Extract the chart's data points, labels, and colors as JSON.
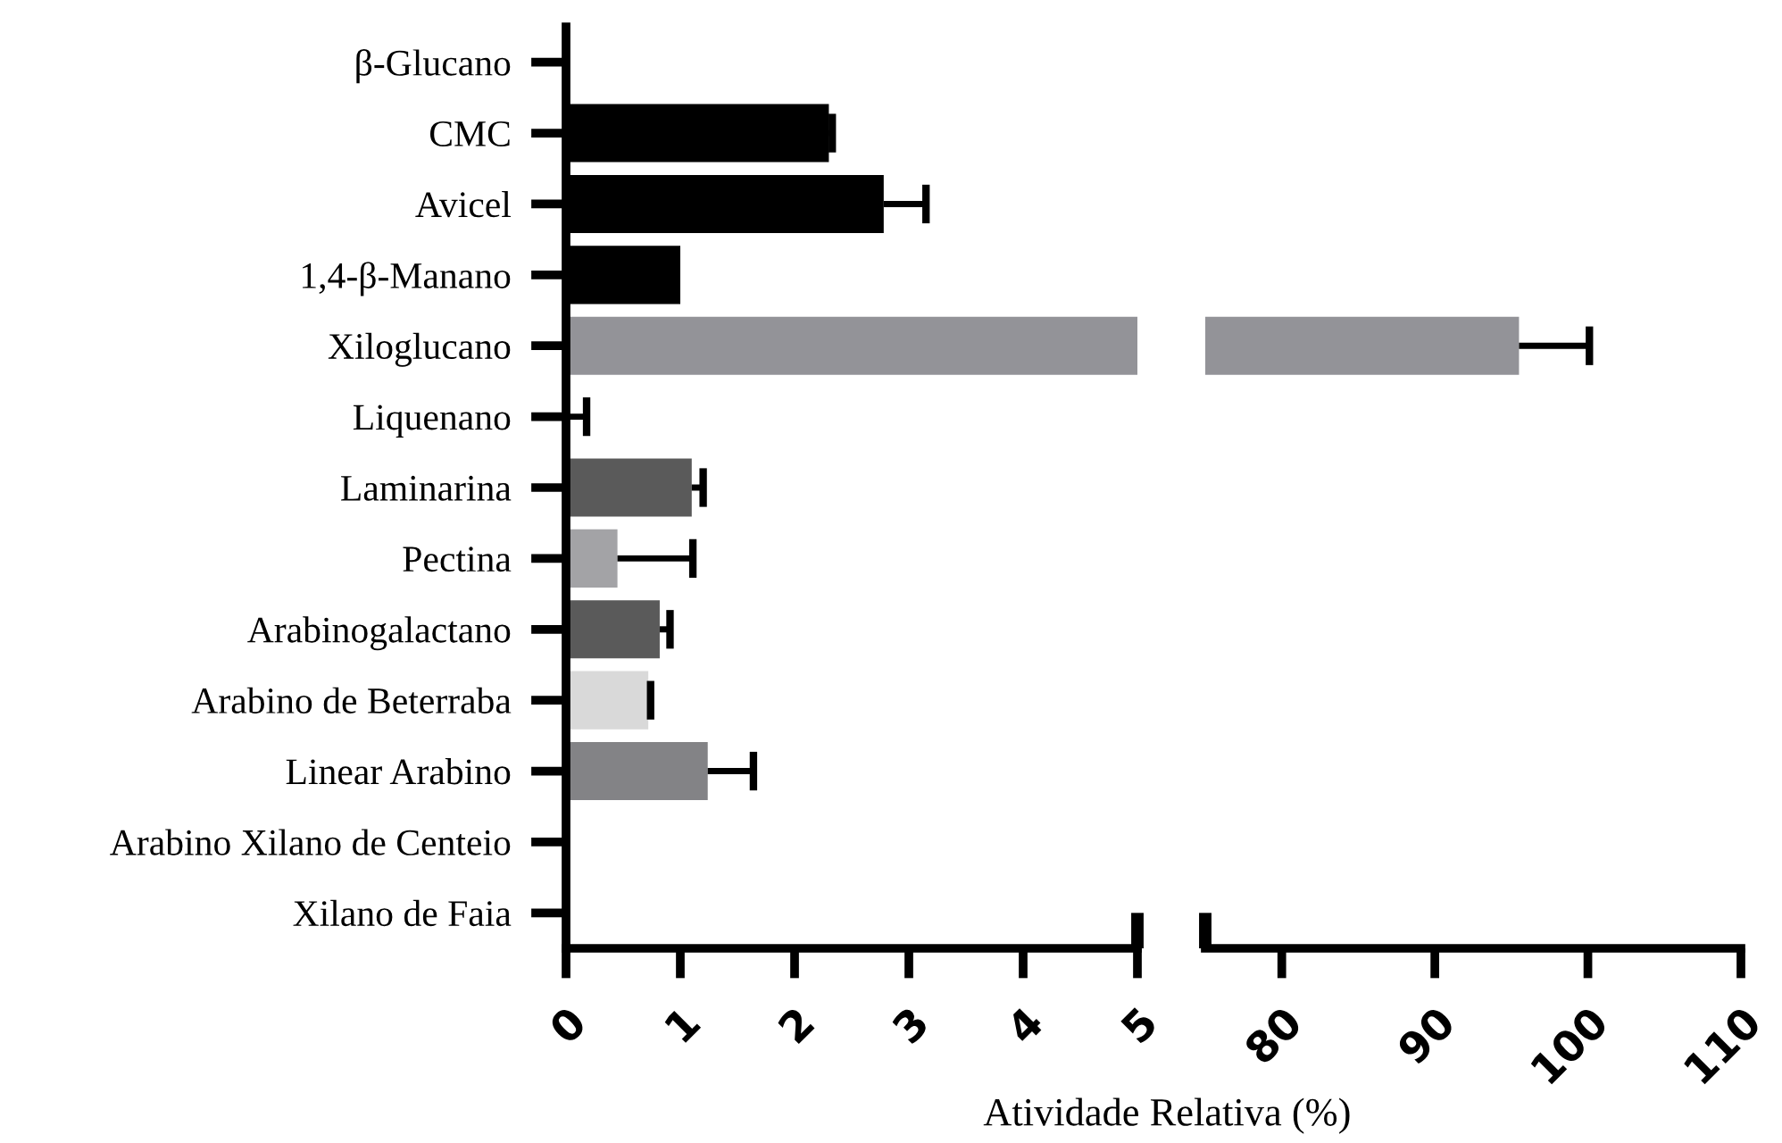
{
  "chart_data": [
    {
      "type": "bar",
      "orientation": "horizontal",
      "xlabel": "Atividade Relativa (%)",
      "categories": [
        "β-Glucano",
        "CMC",
        "Avicel",
        "1,4-β-Manano",
        "Xiloglucano",
        "Liquenano",
        "Laminarina",
        "Pectina",
        "Arabinogalactano",
        "Arabino de Beterraba",
        "Linear Arabino",
        "Arabino Xilano de Centeio",
        "Xilano de Faia"
      ],
      "values": [
        0,
        2.3,
        2.78,
        1.0,
        5,
        0,
        1.1,
        0.45,
        0.82,
        0.72,
        1.24,
        0,
        0
      ],
      "colors": [
        "#000000",
        "#000000",
        "#000000",
        "#000000",
        "#939398",
        "#000000",
        "#5a5a5a",
        "#a3a3a6",
        "#5a5a5a",
        "#d9d9d9",
        "#838386",
        "#000000",
        "#000000"
      ],
      "errors": [
        null,
        [
          2.3,
          2.33
        ],
        [
          2.78,
          3.15
        ],
        null,
        null,
        0.18,
        [
          1.1,
          1.2
        ],
        [
          0.45,
          1.11
        ],
        [
          0.82,
          0.91
        ],
        [
          0.72,
          0.74
        ],
        [
          1.24,
          1.64
        ],
        null,
        null
      ],
      "xlim": [
        0,
        5
      ],
      "xticks": [
        0,
        1,
        2,
        3,
        4,
        5
      ],
      "grid": false
    },
    {
      "type": "bar",
      "orientation": "horizontal",
      "categories": [
        null,
        null,
        null,
        null,
        null,
        null,
        null,
        null,
        null,
        null,
        null,
        null,
        null
      ],
      "values": [
        null,
        null,
        null,
        null,
        95.5,
        null,
        null,
        null,
        null,
        null,
        null,
        null,
        null
      ],
      "colors": [
        "#000000",
        "#000000",
        "#000000",
        "#000000",
        "#939398",
        "#f4f4f4",
        "#5a5a5a",
        "#a3a3a6",
        "#5a5a5a",
        "#d9d9d9",
        "#838386",
        "#000000",
        "#000000"
      ],
      "errors": [
        null,
        null,
        null,
        null,
        [
          95.5,
          100.1
        ],
        null,
        null,
        null,
        null,
        null,
        null,
        null,
        null
      ],
      "xlim": [
        75,
        110
      ],
      "xticks": [
        80,
        90,
        100,
        110
      ],
      "tick_labels": "x",
      "grid": false
    }
  ]
}
